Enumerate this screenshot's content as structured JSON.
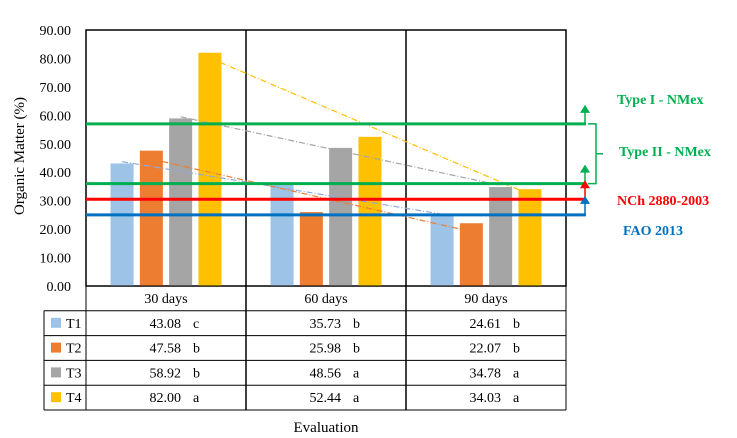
{
  "chart_data": {
    "type": "bar",
    "categories": [
      "30 days",
      "60 days",
      "90 days"
    ],
    "series": [
      {
        "name": "T1",
        "color": "#9DC3E6",
        "values": [
          43.08,
          35.73,
          24.61
        ],
        "letters": [
          "c",
          "b",
          "b"
        ],
        "display": [
          "43.08",
          "35.73",
          "24.61"
        ]
      },
      {
        "name": "T2",
        "color": "#ED7D31",
        "values": [
          47.58,
          25.98,
          22.07
        ],
        "letters": [
          "b",
          "b",
          "b"
        ],
        "display": [
          "47.58",
          "25.98",
          "22.07"
        ]
      },
      {
        "name": "T3",
        "color": "#A5A5A5",
        "values": [
          58.92,
          48.56,
          34.78
        ],
        "letters": [
          "b",
          "a",
          "a"
        ],
        "display": [
          "58.92",
          "48.56",
          "34.78"
        ]
      },
      {
        "name": "T4",
        "color": "#FFC000",
        "values": [
          82.0,
          52.44,
          34.03
        ],
        "letters": [
          "a",
          "a",
          "a"
        ],
        "display": [
          "82.00",
          "52.44",
          "34.03"
        ]
      }
    ],
    "ylabel": "Organic Matter (%)",
    "xlabel": "Evaluation",
    "ylim": [
      0,
      90
    ],
    "yticks": [
      "0.00",
      "10.00",
      "20.00",
      "30.00",
      "40.00",
      "50.00",
      "60.00",
      "70.00",
      "80.00",
      "90.00"
    ],
    "grid": false,
    "trendlines": true,
    "reference_lines": [
      {
        "label": "Type I - NMex",
        "value": 57,
        "color": "#00B050"
      },
      {
        "label": "Type II - NMex",
        "value": 36,
        "color": "#00B050"
      },
      {
        "label": "NCh 2880-2003",
        "value": 30.5,
        "color": "#FF0000"
      },
      {
        "label": "FAO 2013",
        "value": 25,
        "color": "#0070C0"
      }
    ]
  }
}
